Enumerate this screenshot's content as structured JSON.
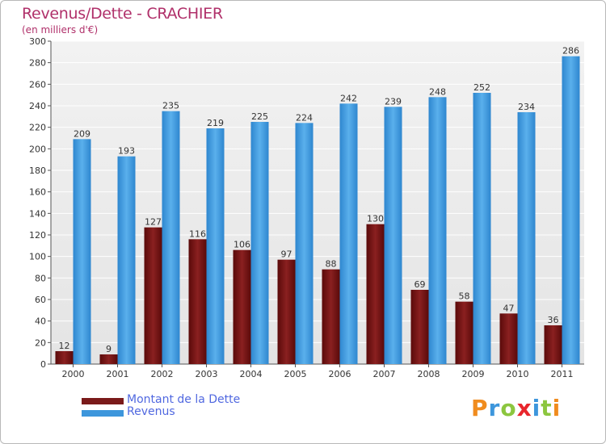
{
  "chart_data": {
    "type": "bar",
    "title": "Revenus/Dette - CRACHIER",
    "subtitle": "(en milliers d'€)",
    "categories": [
      "2000",
      "2001",
      "2002",
      "2003",
      "2004",
      "2005",
      "2006",
      "2007",
      "2008",
      "2009",
      "2010",
      "2011"
    ],
    "series": [
      {
        "name": "Montant de la Dette",
        "color": "#7a1a1a",
        "values": [
          12,
          9,
          127,
          116,
          106,
          97,
          88,
          130,
          69,
          58,
          47,
          36
        ]
      },
      {
        "name": "Revenus",
        "color": "#3d96dc",
        "values": [
          209,
          193,
          235,
          219,
          225,
          224,
          242,
          239,
          248,
          252,
          234,
          286
        ]
      }
    ],
    "ylim": [
      0,
      300
    ],
    "yticks": [
      0,
      20,
      40,
      60,
      80,
      100,
      120,
      140,
      160,
      180,
      200,
      220,
      240,
      260,
      280,
      300
    ],
    "grid": true,
    "legend_position": "bottom-left"
  },
  "logo": {
    "text": "Proxiti",
    "colors": [
      "#f08c1e",
      "#3d96dc",
      "#8cc63f",
      "#e8262c",
      "#3d96dc",
      "#8cc63f",
      "#f08c1e"
    ]
  }
}
